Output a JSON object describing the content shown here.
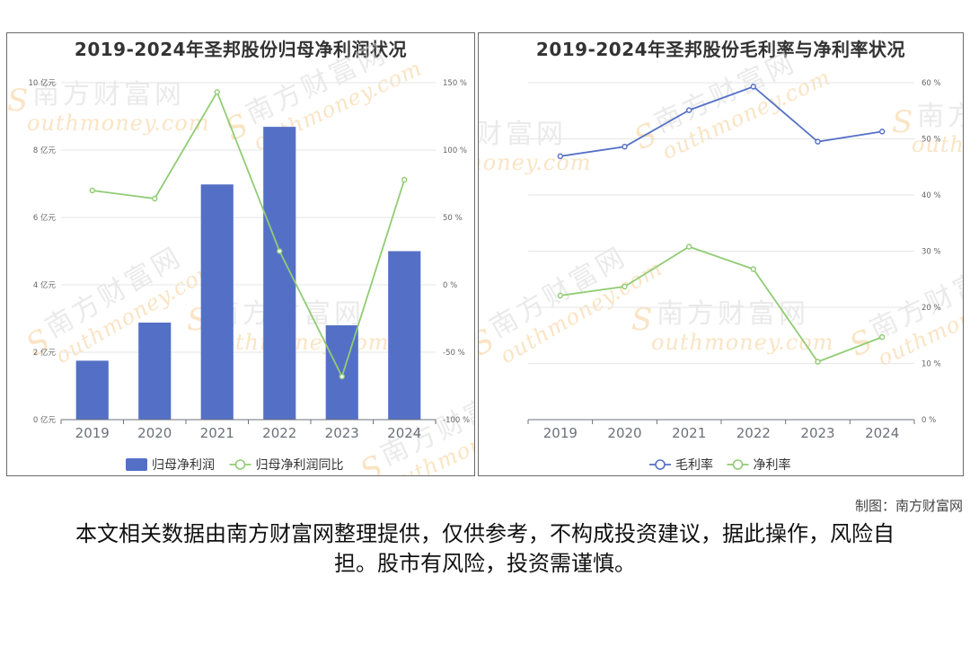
{
  "chart_data": [
    {
      "type": "bar",
      "title": "2019-2024年圣邦股份归母净利润状况",
      "categories": [
        "2019",
        "2020",
        "2021",
        "2022",
        "2023",
        "2024"
      ],
      "series": [
        {
          "name": "归母净利润",
          "type": "bar",
          "axis": "left",
          "color": "#5470c6",
          "values": [
            1.75,
            2.88,
            6.98,
            8.69,
            2.8,
            5.0
          ]
        },
        {
          "name": "归母净利润同比",
          "type": "line",
          "axis": "right",
          "color": "#91cc75",
          "values": [
            70.0,
            64.0,
            143.0,
            25.0,
            -68.0,
            78.0
          ]
        }
      ],
      "y_left": {
        "min": 0,
        "max": 10,
        "ticks": [
          "0 亿元",
          "2 亿元",
          "4 亿元",
          "6 亿元",
          "8 亿元",
          "10 亿元"
        ]
      },
      "y_right": {
        "min": -100,
        "max": 150,
        "ticks": [
          "-100 %",
          "-50 %",
          "0 %",
          "50 %",
          "100 %",
          "150 %"
        ]
      },
      "grid": true,
      "legend": "bottom"
    },
    {
      "type": "line",
      "title": "2019-2024年圣邦股份毛利率与净利率状况",
      "categories": [
        "2019",
        "2020",
        "2021",
        "2022",
        "2023",
        "2024"
      ],
      "series": [
        {
          "name": "毛利率",
          "color": "#5470c6",
          "values": [
            46.9,
            48.6,
            55.1,
            59.3,
            49.5,
            51.3
          ]
        },
        {
          "name": "净利率",
          "color": "#91cc75",
          "values": [
            22.1,
            23.7,
            30.8,
            26.8,
            10.3,
            14.7
          ]
        }
      ],
      "y_right": {
        "min": 0,
        "max": 60,
        "ticks": [
          "0 %",
          "10 %",
          "20 %",
          "30 %",
          "40 %",
          "50 %",
          "60 %"
        ]
      },
      "grid": true,
      "legend": "bottom"
    }
  ],
  "watermark": {
    "brand": "南方财富网",
    "site": "outhmoney.com",
    "s": "S"
  },
  "footer": {
    "credit": "制图：南方财富网",
    "disclaimer": "本文相关数据由南方财富网整理提供，仅供参考，不构成投资建议，据此操作，风险自担。股市有风险，投资需谨慎。"
  }
}
